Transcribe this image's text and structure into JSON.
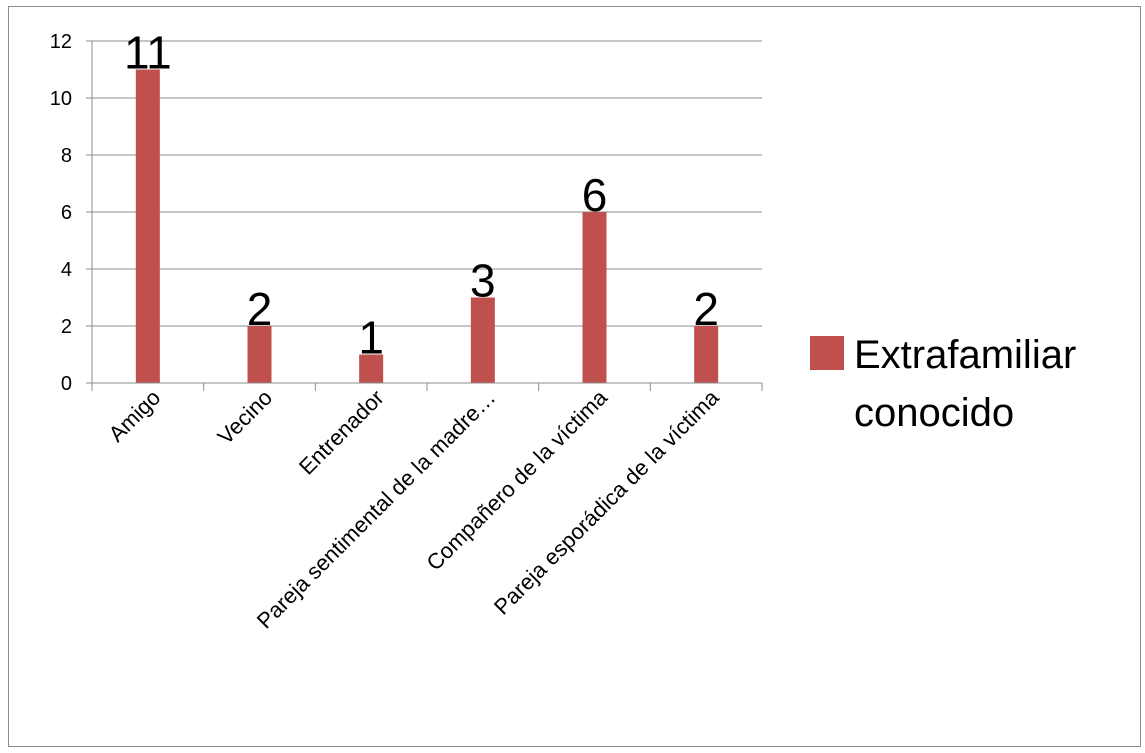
{
  "chart_data": {
    "type": "bar",
    "categories": [
      "Amigo",
      "Vecino",
      "Entrenador",
      "Pareja sentimental de la madre…",
      "Compañero de la víctima",
      "Pareja esporádica de la víctima"
    ],
    "series": [
      {
        "name": "Extrafamiliar conocido",
        "values": [
          11,
          2,
          1,
          3,
          6,
          2
        ],
        "color": "#c0504d"
      }
    ],
    "data_labels": [
      "11",
      "2",
      "1",
      "3",
      "6",
      "2"
    ],
    "ylim": [
      0,
      12
    ],
    "yticks": [
      0,
      2,
      4,
      6,
      8,
      10,
      12
    ],
    "grid": true,
    "legend": {
      "position": "right",
      "lines": [
        "Extrafamiliar",
        "conocido"
      ]
    },
    "title": "",
    "xlabel": "",
    "ylabel": ""
  }
}
